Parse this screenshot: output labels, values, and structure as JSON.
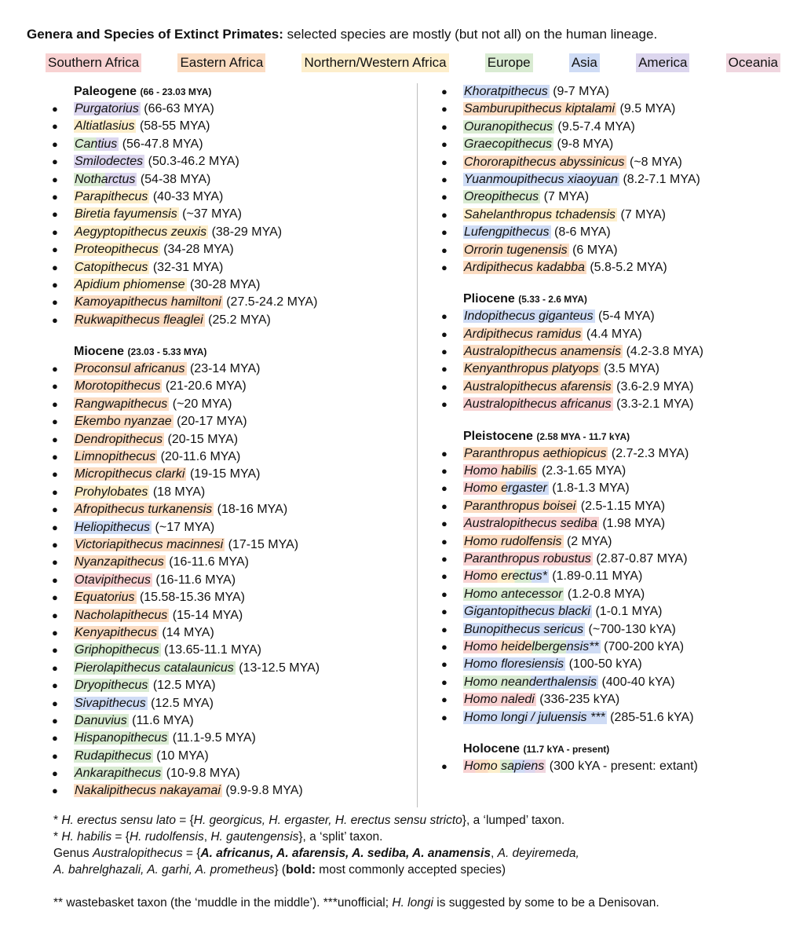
{
  "title": {
    "bold": "Genera and Species of Extinct Primates:",
    "rest": " selected species are mostly (but not all) on the human lineage."
  },
  "colors": {
    "S": "#f8d2d2",
    "E": "#fbdcc2",
    "N": "#fdeecb",
    "EU": "#d9ebd2",
    "AS": "#cfdcf5",
    "AM": "#dcd6ee",
    "OC": "#f0d6df"
  },
  "legend": [
    {
      "label": "Southern Africa",
      "region": "S"
    },
    {
      "label": "Eastern Africa",
      "region": "E"
    },
    {
      "label": "Northern/Western Africa",
      "region": "N"
    },
    {
      "label": "Europe",
      "region": "EU"
    },
    {
      "label": "Asia",
      "region": "AS"
    },
    {
      "label": "America",
      "region": "AM"
    },
    {
      "label": "Oceania",
      "region": "OC"
    }
  ],
  "eras": [
    {
      "column": "left",
      "name": "Paleogene",
      "range": "(66 - 23.03 MYA)",
      "species": [
        {
          "name": "Purgatorius",
          "date": "(66-63 MYA)",
          "bands": [
            [
              "AM",
              100
            ]
          ]
        },
        {
          "name": "Altiatlasius",
          "date": "(58-55 MYA)",
          "bands": [
            [
              "N",
              100
            ]
          ]
        },
        {
          "name": "Cantius",
          "date": "(56-47.8 MYA)",
          "bands": [
            [
              "EU",
              50
            ],
            [
              "AM",
              50
            ]
          ]
        },
        {
          "name": "Smilodectes",
          "date": "(50.3-46.2 MYA)",
          "bands": [
            [
              "AM",
              100
            ]
          ]
        },
        {
          "name": "Notharctus",
          "date": "(54-38 MYA)",
          "bands": [
            [
              "EU",
              50
            ],
            [
              "AM",
              50
            ]
          ]
        },
        {
          "name": "Parapithecus",
          "date": "(40-33 MYA)",
          "bands": [
            [
              "N",
              100
            ]
          ]
        },
        {
          "name": "Biretia fayumensis",
          "date": "(~37 MYA)",
          "bands": [
            [
              "N",
              100
            ]
          ]
        },
        {
          "name": "Aegyptopithecus zeuxis",
          "date": "(38-29 MYA)",
          "bands": [
            [
              "N",
              100
            ]
          ]
        },
        {
          "name": "Proteopithecus",
          "date": "(34-28 MYA)",
          "bands": [
            [
              "N",
              100
            ]
          ]
        },
        {
          "name": "Catopithecus",
          "date": "(32-31 MYA)",
          "bands": [
            [
              "N",
              100
            ]
          ]
        },
        {
          "name": "Apidium phiomense",
          "date": "(30-28 MYA)",
          "bands": [
            [
              "N",
              100
            ]
          ]
        },
        {
          "name": "Kamoyapithecus hamiltoni",
          "date": "(27.5-24.2 MYA)",
          "bands": [
            [
              "E",
              100
            ]
          ]
        },
        {
          "name": "Rukwapithecus fleaglei",
          "date": "(25.2 MYA)",
          "bands": [
            [
              "E",
              100
            ]
          ]
        }
      ]
    },
    {
      "column": "left",
      "name": "Miocene",
      "range": "(23.03 - 5.33 MYA)",
      "species": [
        {
          "name": "Proconsul africanus",
          "date": "(23-14 MYA)",
          "bands": [
            [
              "E",
              100
            ]
          ]
        },
        {
          "name": "Morotopithecus",
          "date": "(21-20.6 MYA)",
          "bands": [
            [
              "E",
              100
            ]
          ]
        },
        {
          "name": "Rangwapithecus",
          "date": "(~20 MYA)",
          "bands": [
            [
              "E",
              100
            ]
          ]
        },
        {
          "name": "Ekembo nyanzae",
          "date": "(20-17 MYA)",
          "bands": [
            [
              "E",
              100
            ]
          ]
        },
        {
          "name": "Dendropithecus",
          "date": "(20-15 MYA)",
          "bands": [
            [
              "E",
              100
            ]
          ]
        },
        {
          "name": "Limnopithecus",
          "date": "(20-11.6 MYA)",
          "bands": [
            [
              "E",
              100
            ]
          ]
        },
        {
          "name": "Micropithecus clarki",
          "date": "(19-15 MYA)",
          "bands": [
            [
              "E",
              100
            ]
          ]
        },
        {
          "name": "Prohylobates",
          "date": "(18 MYA)",
          "bands": [
            [
              "N",
              100
            ]
          ]
        },
        {
          "name": "Afropithecus turkanensis",
          "date": "(18-16 MYA)",
          "bands": [
            [
              "E",
              100
            ]
          ]
        },
        {
          "name": "Heliopithecus",
          "date": "(~17 MYA)",
          "bands": [
            [
              "AS",
              100
            ]
          ]
        },
        {
          "name": "Victoriapithecus macinnesi",
          "date": "(17-15 MYA)",
          "bands": [
            [
              "E",
              100
            ]
          ]
        },
        {
          "name": "Nyanzapithecus",
          "date": "(16-11.6 MYA)",
          "bands": [
            [
              "E",
              100
            ]
          ]
        },
        {
          "name": "Otavipithecus",
          "date": "(16-11.6 MYA)",
          "bands": [
            [
              "S",
              100
            ]
          ]
        },
        {
          "name": "Equatorius",
          "date": "(15.58-15.36 MYA)",
          "bands": [
            [
              "E",
              100
            ]
          ]
        },
        {
          "name": "Nacholapithecus",
          "date": "(15-14 MYA)",
          "bands": [
            [
              "E",
              100
            ]
          ]
        },
        {
          "name": "Kenyapithecus",
          "date": "(14 MYA)",
          "bands": [
            [
              "E",
              100
            ]
          ]
        },
        {
          "name": "Griphopithecus",
          "date": "(13.65-11.1 MYA)",
          "bands": [
            [
              "EU",
              100
            ]
          ]
        },
        {
          "name": "Pierolapithecus catalaunicus",
          "date": "(13-12.5 MYA)",
          "bands": [
            [
              "EU",
              100
            ]
          ]
        },
        {
          "name": "Dryopithecus",
          "date": "(12.5 MYA)",
          "bands": [
            [
              "EU",
              100
            ]
          ]
        },
        {
          "name": "Sivapithecus",
          "date": "(12.5 MYA)",
          "bands": [
            [
              "AS",
              100
            ]
          ]
        },
        {
          "name": "Danuvius",
          "date": "(11.6 MYA)",
          "bands": [
            [
              "EU",
              100
            ]
          ]
        },
        {
          "name": "Hispanopithecus",
          "date": "(11.1-9.5 MYA)",
          "bands": [
            [
              "EU",
              100
            ]
          ]
        },
        {
          "name": "Rudapithecus",
          "date": "(10 MYA)",
          "bands": [
            [
              "EU",
              100
            ]
          ]
        },
        {
          "name": "Ankarapithecus",
          "date": "(10-9.8 MYA)",
          "bands": [
            [
              "EU",
              100
            ]
          ]
        },
        {
          "name": "Nakalipithecus nakayamai",
          "date": "(9.9-9.8 MYA)",
          "bands": [
            [
              "E",
              100
            ]
          ]
        },
        {
          "name": "Khoratpithecus",
          "date": "(9-7 MYA)",
          "bands": [
            [
              "AS",
              100
            ]
          ],
          "column": "right"
        },
        {
          "name": "Samburupithecus kiptalami",
          "date": "(9.5 MYA)",
          "bands": [
            [
              "E",
              100
            ]
          ],
          "column": "right"
        },
        {
          "name": "Ouranopithecus",
          "date": "(9.5-7.4 MYA)",
          "bands": [
            [
              "EU",
              100
            ]
          ],
          "column": "right"
        },
        {
          "name": "Graecopithecus",
          "date": "(9-8 MYA)",
          "bands": [
            [
              "EU",
              100
            ]
          ],
          "column": "right"
        },
        {
          "name": "Chororapithecus abyssinicus",
          "date": "(~8 MYA)",
          "bands": [
            [
              "E",
              100
            ]
          ],
          "column": "right"
        },
        {
          "name": "Yuanmoupithecus xiaoyuan",
          "date": "(8.2-7.1 MYA)",
          "bands": [
            [
              "AS",
              100
            ]
          ],
          "column": "right"
        },
        {
          "name": "Oreopithecus",
          "date": "(7 MYA)",
          "bands": [
            [
              "EU",
              100
            ]
          ],
          "column": "right"
        },
        {
          "name": "Sahelanthropus tchadensis",
          "date": "(7 MYA)",
          "bands": [
            [
              "N",
              100
            ]
          ],
          "column": "right"
        },
        {
          "name": "Lufengpithecus",
          "date": "(8-6 MYA)",
          "bands": [
            [
              "AS",
              100
            ]
          ],
          "column": "right"
        },
        {
          "name": "Orrorin tugenensis",
          "date": "(6 MYA)",
          "bands": [
            [
              "E",
              100
            ]
          ],
          "column": "right"
        },
        {
          "name": "Ardipithecus kadabba",
          "date": "(5.8-5.2 MYA)",
          "bands": [
            [
              "E",
              100
            ]
          ],
          "column": "right"
        }
      ]
    },
    {
      "column": "right",
      "name": "Pliocene",
      "range": "(5.33 - 2.6 MYA)",
      "species": [
        {
          "name": "Indopithecus giganteus",
          "date": "(5-4 MYA)",
          "bands": [
            [
              "AS",
              100
            ]
          ]
        },
        {
          "name": "Ardipithecus ramidus",
          "date": "(4.4 MYA)",
          "bands": [
            [
              "E",
              100
            ]
          ]
        },
        {
          "name": "Australopithecus anamensis",
          "date": "(4.2-3.8 MYA)",
          "bands": [
            [
              "E",
              100
            ]
          ]
        },
        {
          "name": "Kenyanthropus platyops",
          "date": "(3.5 MYA)",
          "bands": [
            [
              "E",
              100
            ]
          ]
        },
        {
          "name": "Australopithecus afarensis",
          "date": "(3.6-2.9 MYA)",
          "bands": [
            [
              "E",
              100
            ]
          ]
        },
        {
          "name": "Australopithecus africanus",
          "date": "(3.3-2.1 MYA)",
          "bands": [
            [
              "S",
              100
            ]
          ]
        }
      ]
    },
    {
      "column": "right",
      "name": "Pleistocene",
      "range": "(2.58 MYA - 11.7 kYA)",
      "species": [
        {
          "name": "Paranthropus aethiopicus",
          "date": "(2.7-2.3 MYA)",
          "bands": [
            [
              "E",
              100
            ]
          ]
        },
        {
          "name": "Homo habilis",
          "date": "(2.3-1.65 MYA)",
          "bands": [
            [
              "S",
              50
            ],
            [
              "E",
              50
            ]
          ]
        },
        {
          "name": "Homo ergaster",
          "date": "(1.8-1.3 MYA)",
          "bands": [
            [
              "S",
              25
            ],
            [
              "E",
              25
            ],
            [
              "AS",
              50
            ]
          ]
        },
        {
          "name": "Paranthropus boisei",
          "date": "(2.5-1.15 MYA)",
          "bands": [
            [
              "E",
              100
            ]
          ]
        },
        {
          "name": "Australopithecus sediba",
          "date": "(1.98 MYA)",
          "bands": [
            [
              "S",
              100
            ]
          ]
        },
        {
          "name": "Homo rudolfensis",
          "date": "(2 MYA)",
          "bands": [
            [
              "E",
              100
            ]
          ]
        },
        {
          "name": "Paranthropus robustus",
          "date": "(2.87-0.87 MYA)",
          "bands": [
            [
              "S",
              100
            ]
          ]
        },
        {
          "name": "Homo erectus*",
          "date": "(1.89-0.11 MYA)",
          "bands": [
            [
              "S",
              20
            ],
            [
              "E",
              20
            ],
            [
              "N",
              20
            ],
            [
              "EU",
              20
            ],
            [
              "AS",
              20
            ]
          ]
        },
        {
          "name": "Homo antecessor",
          "date": "(1.2-0.8 MYA)",
          "bands": [
            [
              "EU",
              100
            ]
          ]
        },
        {
          "name": "Gigantopithecus blacki",
          "date": "(1-0.1 MYA)",
          "bands": [
            [
              "AS",
              100
            ]
          ]
        },
        {
          "name": "Bunopithecus sericus",
          "date": "(~700-130 kYA)",
          "bands": [
            [
              "AS",
              100
            ]
          ]
        },
        {
          "name": "Homo heidelbergensis**",
          "date": "(700-200 kYA)",
          "bands": [
            [
              "S",
              25
            ],
            [
              "E",
              25
            ],
            [
              "EU",
              25
            ],
            [
              "AS",
              25
            ]
          ]
        },
        {
          "name": "Homo floresiensis",
          "date": "(100-50 kYA)",
          "bands": [
            [
              "AS",
              100
            ]
          ]
        },
        {
          "name": "Homo neanderthalensis",
          "date": "(400-40 kYA)",
          "bands": [
            [
              "EU",
              50
            ],
            [
              "AS",
              50
            ]
          ]
        },
        {
          "name": "Homo naledi",
          "date": "(336-235 kYA)",
          "bands": [
            [
              "S",
              100
            ]
          ]
        },
        {
          "name": "Homo longi / juluensis ***",
          "date": "(285-51.6 kYA)",
          "bands": [
            [
              "AS",
              100
            ]
          ]
        }
      ]
    },
    {
      "column": "right",
      "name": "Holocene",
      "range": "(11.7 kYA - present)",
      "species": [
        {
          "name": "Homo sapiens",
          "date": "(300 kYA - present: extant)",
          "bands": [
            [
              "S",
              15
            ],
            [
              "E",
              15
            ],
            [
              "N",
              15
            ],
            [
              "EU",
              15
            ],
            [
              "AS",
              15
            ],
            [
              "AM",
              12
            ],
            [
              "OC",
              13
            ]
          ]
        }
      ]
    }
  ],
  "notes": {
    "n1_a": "* ",
    "n1_b": "H. erectus sensu lato",
    "n1_c": " = {",
    "n1_d": "H. georgicus, H. ergaster, H. erectus sensu stricto",
    "n1_e": "}, a ‘lumped’ taxon.",
    "n2_a": "* ",
    "n2_b": "H. habilis",
    "n2_c": " = {",
    "n2_d": "H. rudolfensis",
    "n2_e": ", ",
    "n2_f": "H. gautengensis",
    "n2_g": "}, a ‘split’ taxon.",
    "n3_a": "Genus ",
    "n3_b": "Australopithecus",
    "n3_c": " = {",
    "n3_d": "A. africanus, A. afarensis, A. sediba, A. anamensis",
    "n3_e": ", ",
    "n3_f": "A. deyiremeda,",
    "n4_a": "A. bahrelghazali, A. garhi, A. prometheus",
    "n4_b": "} (",
    "n4_c": "bold:",
    "n4_d": " most commonly accepted species)",
    "n5_a": "** wastebasket taxon (the ‘muddle in the middle’). ***unofficial; ",
    "n5_b": "H. longi",
    "n5_c": " is suggested by some to be a Denisovan."
  }
}
